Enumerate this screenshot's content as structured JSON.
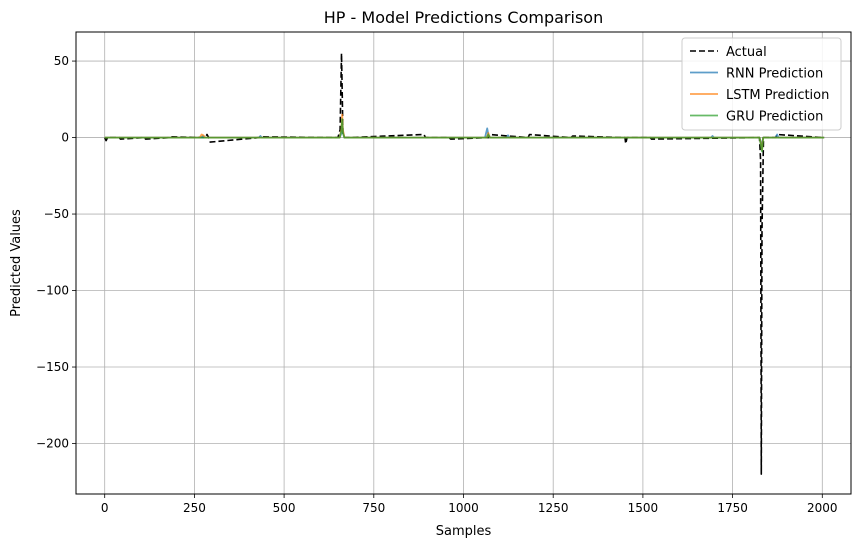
{
  "chart_data": {
    "type": "line",
    "title": "HP - Model Predictions Comparison",
    "xlabel": "Samples",
    "ylabel": "Predicted Values",
    "xlim": [
      -80,
      2080
    ],
    "ylim": [
      -233,
      69
    ],
    "xticks": [
      0,
      250,
      500,
      750,
      1000,
      1250,
      1500,
      1750,
      2000
    ],
    "yticks": [
      50,
      0,
      -50,
      -100,
      -150,
      -200
    ],
    "xtick_labels": [
      "0",
      "250",
      "500",
      "750",
      "1000",
      "1250",
      "1500",
      "1750",
      "2000"
    ],
    "ytick_labels": [
      "50",
      "0",
      "−50",
      "−100",
      "−150",
      "−200"
    ],
    "grid": true,
    "legend_position": "upper right",
    "series": [
      {
        "name": "Actual",
        "color": "#000000",
        "style": "dashed",
        "x": [
          0,
          4,
          8,
          40,
          44,
          110,
          114,
          180,
          185,
          280,
          285,
          290,
          294,
          430,
          434,
          650,
          656,
          660,
          662,
          664,
          668,
          675,
          890,
          894,
          960,
          964,
          1070,
          1074,
          1180,
          1184,
          1300,
          1304,
          1450,
          1452,
          1456,
          1520,
          1524,
          1825,
          1828,
          1830,
          1832,
          1836,
          1870,
          1874,
          2005
        ],
        "y": [
          0,
          -2,
          0,
          0,
          -1,
          0,
          -1,
          0,
          0.5,
          0,
          2,
          0,
          -3,
          0,
          0.5,
          0,
          5,
          55,
          30,
          3,
          0,
          0,
          2,
          0,
          0,
          -1,
          0,
          2,
          0,
          2,
          0,
          1,
          0,
          -4,
          0,
          0,
          -1,
          0,
          -15,
          -220,
          -60,
          0,
          0,
          2,
          0
        ]
      },
      {
        "name": "RNN Prediction",
        "color": "#1f77b4",
        "style": "solid",
        "x": [
          0,
          270,
          274,
          278,
          430,
          434,
          438,
          655,
          660,
          662,
          664,
          668,
          1060,
          1066,
          1070,
          1074,
          1120,
          1124,
          1128,
          1690,
          1694,
          1698,
          1825,
          1829,
          1832,
          1835,
          1870,
          1874,
          1878,
          2005
        ],
        "y": [
          0,
          0,
          1,
          0,
          0,
          1,
          0,
          0,
          3,
          10,
          4,
          0,
          0,
          6,
          1,
          0,
          0,
          1.5,
          0,
          0,
          1,
          0,
          0,
          -3,
          -7,
          0,
          0,
          2,
          0,
          0
        ]
      },
      {
        "name": "LSTM Prediction",
        "color": "#ff7f0e",
        "style": "solid",
        "x": [
          0,
          265,
          270,
          275,
          280,
          655,
          660,
          662,
          664,
          668,
          1065,
          1069,
          1073,
          1825,
          1829,
          1832,
          1835,
          2005
        ],
        "y": [
          0,
          0,
          2,
          1.5,
          0,
          0,
          6,
          15,
          5,
          0,
          0,
          3,
          0,
          0,
          -4,
          -8,
          0,
          0
        ]
      },
      {
        "name": "GRU Prediction",
        "color": "#2ca02c",
        "style": "solid",
        "x": [
          0,
          655,
          660,
          662,
          664,
          668,
          1065,
          1069,
          1073,
          1825,
          1829,
          1832,
          1835,
          2005
        ],
        "y": [
          0,
          0,
          5,
          12,
          3,
          0,
          0,
          2,
          0,
          0,
          -5,
          -9,
          0,
          0
        ]
      }
    ]
  }
}
